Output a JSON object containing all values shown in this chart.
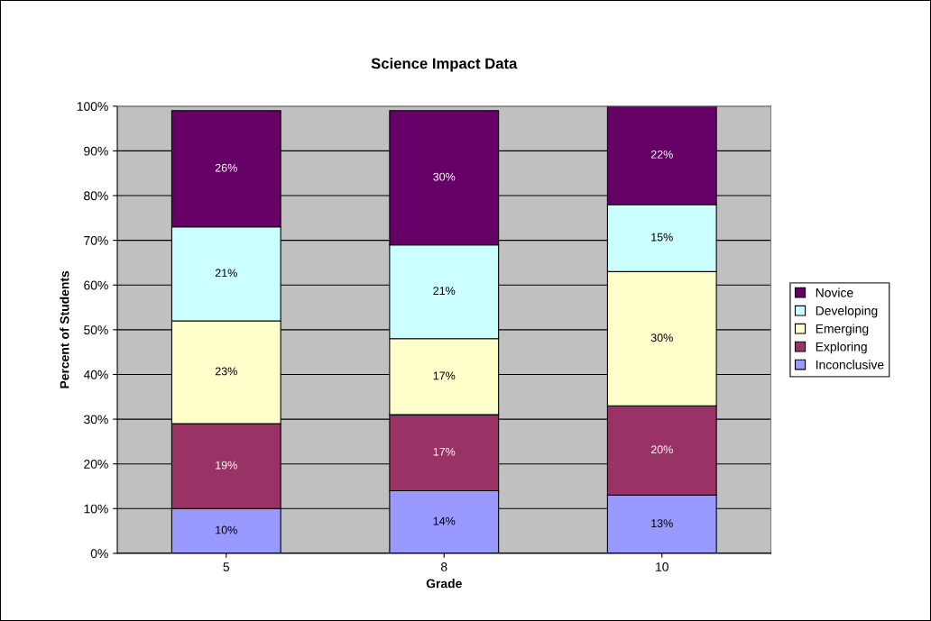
{
  "chart_data": {
    "type": "bar",
    "stacked": true,
    "title": "Science Impact Data",
    "xlabel": "Grade",
    "ylabel": "Percent of Students",
    "categories": [
      "5",
      "8",
      "10"
    ],
    "series": [
      {
        "name": "Inconclusive",
        "color": "#9999ff",
        "values": [
          10,
          14,
          13
        ],
        "value_labels": [
          "10%",
          "14%",
          "13%"
        ]
      },
      {
        "name": "Exploring",
        "color": "#993366",
        "values": [
          19,
          17,
          20
        ],
        "value_labels": [
          "19%",
          "17%",
          "20%"
        ]
      },
      {
        "name": "Emerging",
        "color": "#ffffcc",
        "values": [
          23,
          17,
          30
        ],
        "value_labels": [
          "23%",
          "17%",
          "30%"
        ]
      },
      {
        "name": "Developing",
        "color": "#ccffff",
        "values": [
          21,
          21,
          15
        ],
        "value_labels": [
          "21%",
          "21%",
          "15%"
        ]
      },
      {
        "name": "Novice",
        "color": "#660066",
        "values": [
          26,
          30,
          22
        ],
        "value_labels": [
          "26%",
          "30%",
          "22%"
        ]
      }
    ],
    "ylim": [
      0,
      100
    ],
    "yticks": [
      {
        "value": 0,
        "label": "0%"
      },
      {
        "value": 10,
        "label": "10%"
      },
      {
        "value": 20,
        "label": "20%"
      },
      {
        "value": 30,
        "label": "30%"
      },
      {
        "value": 40,
        "label": "40%"
      },
      {
        "value": 50,
        "label": "50%"
      },
      {
        "value": 60,
        "label": "60%"
      },
      {
        "value": 70,
        "label": "70%"
      },
      {
        "value": 80,
        "label": "80%"
      },
      {
        "value": 90,
        "label": "90%"
      },
      {
        "value": 100,
        "label": "100%"
      }
    ],
    "grid": "y",
    "legend": "right"
  }
}
